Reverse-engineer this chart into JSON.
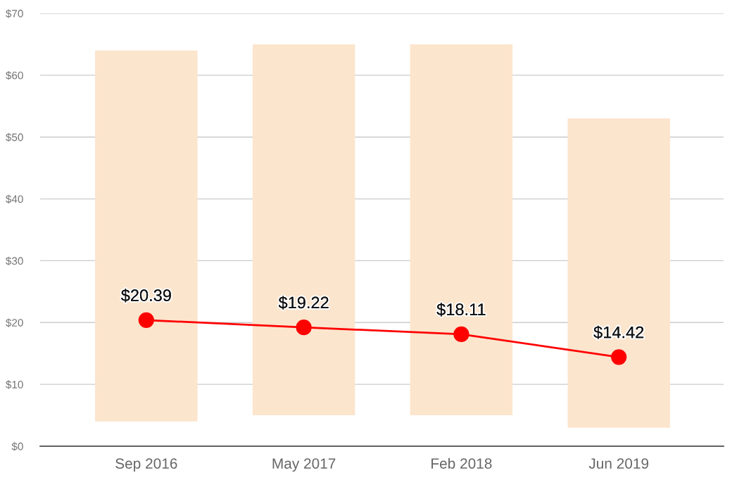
{
  "chart_data": {
    "type": "bar",
    "categories": [
      "Sep 2016",
      "May 2017",
      "Feb 2018",
      "Jun 2019"
    ],
    "series": [
      {
        "color": "#fce5cd",
        "values": [
          60,
          60,
          60,
          50
        ],
        "base": [
          4,
          5,
          5,
          3
        ]
      },
      {
        "type": "line",
        "color": "#ff0000",
        "values": [
          20.39,
          19.22,
          18.11,
          14.42
        ],
        "value_labels": [
          "$20.39",
          "$19.22",
          "$18.11",
          "$14.42"
        ],
        "marker": "circle",
        "line_style": "solid"
      }
    ],
    "ylim": [
      0,
      70
    ],
    "yticks": [
      {
        "value": 0,
        "label": "$0"
      },
      {
        "value": 10,
        "label": "$10"
      },
      {
        "value": 20,
        "label": "$20"
      },
      {
        "value": 30,
        "label": "$30"
      },
      {
        "value": 40,
        "label": "$40"
      },
      {
        "value": 50,
        "label": "$50"
      },
      {
        "value": 60,
        "label": "$60"
      },
      {
        "value": 70,
        "label": "$70"
      }
    ],
    "grid": "y"
  }
}
